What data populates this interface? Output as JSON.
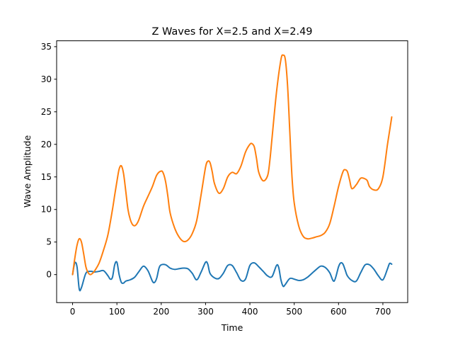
{
  "chart_data": {
    "type": "line",
    "title": "Z Waves for X=2.5 and X=2.49",
    "xlabel": "Time",
    "ylabel": "Wave Amplitude",
    "xlim": [
      -36,
      756
    ],
    "ylim": [
      -4.3,
      35.9
    ],
    "xticks": [
      0,
      100,
      200,
      300,
      400,
      500,
      600,
      700
    ],
    "yticks": [
      0,
      5,
      10,
      15,
      20,
      25,
      30,
      35
    ],
    "grid": false,
    "legend": "none",
    "series": [
      {
        "color": "#1f77b4",
        "x": [
          0,
          5,
          10,
          15,
          20,
          30,
          40,
          50,
          60,
          70,
          80,
          85,
          90,
          95,
          100,
          105,
          110,
          115,
          120,
          130,
          140,
          150,
          160,
          170,
          180,
          185,
          190,
          195,
          200,
          210,
          220,
          230,
          240,
          250,
          260,
          270,
          280,
          290,
          300,
          305,
          310,
          320,
          330,
          340,
          350,
          360,
          370,
          380,
          390,
          400,
          410,
          420,
          430,
          440,
          450,
          460,
          465,
          470,
          475,
          480,
          490,
          500,
          510,
          520,
          530,
          540,
          550,
          560,
          570,
          580,
          590,
          600,
          605,
          610,
          615,
          620,
          630,
          640,
          650,
          660,
          670,
          680,
          690,
          700,
          710,
          715,
          720
        ],
        "y": [
          0.0,
          1.8,
          1.2,
          -2.2,
          -2.0,
          0.2,
          0.5,
          0.4,
          0.5,
          0.6,
          -0.2,
          -0.7,
          -0.4,
          1.5,
          1.9,
          0.0,
          -1.2,
          -1.3,
          -1.0,
          -0.8,
          -0.4,
          0.5,
          1.3,
          0.6,
          -1.0,
          -1.2,
          -0.5,
          1.0,
          1.5,
          1.5,
          1.0,
          0.8,
          0.9,
          1.0,
          0.9,
          0.2,
          -0.8,
          0.4,
          1.9,
          1.6,
          0.2,
          -0.5,
          -0.6,
          0.2,
          1.4,
          1.4,
          0.3,
          -0.9,
          -0.7,
          1.4,
          1.8,
          1.2,
          0.5,
          -0.2,
          -0.3,
          1.4,
          1.1,
          -0.8,
          -1.8,
          -1.5,
          -0.6,
          -0.7,
          -0.9,
          -0.8,
          -0.4,
          0.2,
          0.8,
          1.3,
          1.1,
          0.3,
          -1.0,
          1.2,
          1.8,
          1.6,
          0.7,
          -0.2,
          -0.9,
          -1.0,
          0.3,
          1.5,
          1.5,
          0.8,
          -0.2,
          -0.8,
          0.8,
          1.7,
          1.6
        ]
      },
      {
        "color": "#ff7f0e",
        "x": [
          0,
          5,
          10,
          15,
          20,
          25,
          30,
          35,
          40,
          45,
          50,
          60,
          70,
          80,
          90,
          95,
          100,
          105,
          110,
          115,
          120,
          125,
          130,
          135,
          140,
          145,
          150,
          160,
          170,
          180,
          190,
          200,
          205,
          210,
          215,
          220,
          230,
          240,
          250,
          260,
          270,
          280,
          290,
          300,
          305,
          310,
          315,
          320,
          330,
          340,
          350,
          360,
          370,
          380,
          390,
          400,
          405,
          410,
          415,
          420,
          430,
          440,
          445,
          450,
          460,
          470,
          475,
          480,
          485,
          490,
          495,
          500,
          510,
          520,
          530,
          540,
          550,
          560,
          570,
          580,
          590,
          600,
          610,
          615,
          620,
          625,
          630,
          640,
          650,
          660,
          665,
          670,
          680,
          690,
          700,
          710,
          715,
          720
        ],
        "y": [
          0.0,
          2.5,
          4.5,
          5.5,
          5.0,
          3.2,
          1.2,
          0.3,
          0.0,
          0.2,
          0.6,
          1.8,
          3.8,
          6.2,
          10.0,
          12.2,
          14.3,
          16.2,
          16.7,
          15.5,
          12.8,
          10.0,
          8.5,
          7.7,
          7.5,
          7.8,
          8.5,
          10.5,
          12.0,
          13.5,
          15.3,
          15.9,
          15.5,
          14.2,
          12.0,
          9.5,
          7.2,
          5.8,
          5.1,
          5.3,
          6.3,
          8.3,
          12.3,
          16.5,
          17.4,
          17.2,
          15.8,
          14.0,
          12.5,
          13.2,
          15.0,
          15.7,
          15.5,
          16.7,
          18.8,
          20.0,
          20.1,
          19.6,
          17.8,
          15.7,
          14.4,
          15.2,
          17.5,
          21.0,
          28.0,
          33.0,
          33.7,
          33.0,
          29.0,
          22.0,
          15.0,
          11.0,
          7.5,
          5.9,
          5.5,
          5.6,
          5.8,
          6.0,
          6.5,
          7.8,
          10.5,
          13.5,
          15.8,
          16.1,
          15.8,
          14.5,
          13.2,
          13.8,
          14.8,
          14.7,
          14.4,
          13.5,
          13.0,
          13.2,
          15.0,
          19.8,
          22.0,
          24.2
        ]
      }
    ]
  }
}
